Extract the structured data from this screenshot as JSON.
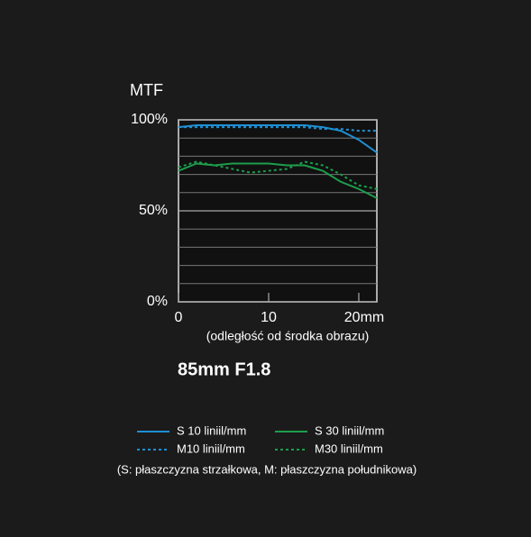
{
  "chart_data": {
    "type": "line",
    "title": "MTF",
    "subtitle": "85mm F1.8",
    "x_label": "(odległość od środka obrazu)",
    "note": "(S: płaszczyzna strzałkowa, M: płaszczyzna południkowa)",
    "x": [
      0,
      2,
      4,
      6,
      8,
      10,
      12,
      14,
      16,
      18,
      20,
      22
    ],
    "series": [
      {
        "name": "S 10 liniil/mm",
        "color": "#1e90d4",
        "dashed": false,
        "values": [
          96,
          97,
          97,
          97,
          97,
          97,
          97,
          97,
          96,
          94,
          89,
          82
        ]
      },
      {
        "name": "M10 liniil/mm",
        "color": "#1e90d4",
        "dashed": true,
        "values": [
          96,
          96,
          96,
          96,
          96,
          96,
          96,
          96,
          95,
          95,
          94,
          94
        ]
      },
      {
        "name": "S 30 liniil/mm",
        "color": "#1c9e4c",
        "dashed": false,
        "values": [
          72,
          76,
          75,
          76,
          76,
          76,
          75,
          75,
          72,
          66,
          62,
          57
        ]
      },
      {
        "name": "M30 liniil/mm",
        "color": "#1c9e4c",
        "dashed": true,
        "values": [
          74,
          77,
          75,
          73,
          71,
          72,
          73,
          77,
          75,
          70,
          64,
          62
        ]
      }
    ],
    "xlim": [
      0,
      22
    ],
    "xticks": [
      0,
      10,
      {
        "value": 20,
        "label": "20mm"
      }
    ],
    "ylim": [
      0,
      100
    ],
    "yticks": [
      {
        "value": 0,
        "label": "0%"
      },
      {
        "value": 50,
        "label": "50%"
      },
      {
        "value": 100,
        "label": "100%"
      }
    ],
    "minor_yticks": [
      10,
      20,
      30,
      40,
      60,
      70,
      80,
      90
    ],
    "grid": true
  }
}
